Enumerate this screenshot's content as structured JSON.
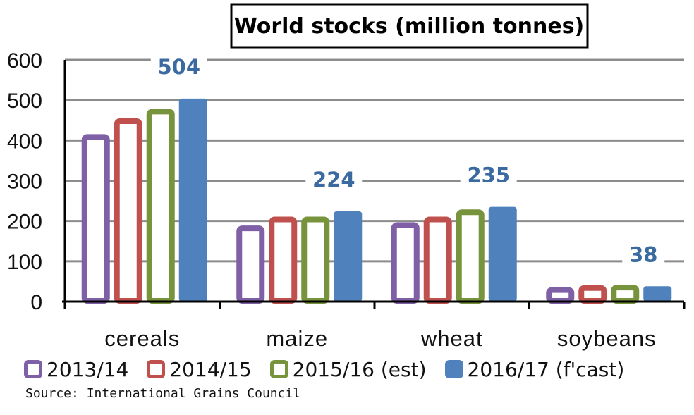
{
  "chart_data": {
    "type": "bar",
    "title": "World stocks (million tonnes)",
    "xlabel": "",
    "ylabel": "",
    "ylim": [
      0,
      600
    ],
    "yticks": [
      0,
      100,
      200,
      300,
      400,
      500,
      600
    ],
    "grid": true,
    "legend": "bottom",
    "categories": [
      "cereals",
      "maize",
      "wheat",
      "soybeans"
    ],
    "series": [
      {
        "name": "2013/14",
        "color": "#7f5fa6",
        "style": "hollow",
        "values": [
          414,
          187,
          195,
          34
        ]
      },
      {
        "name": "2014/15",
        "color": "#c0504d",
        "style": "hollow",
        "values": [
          453,
          209,
          209,
          39
        ]
      },
      {
        "name": "2015/16 (est)",
        "color": "#77933c",
        "style": "hollow",
        "values": [
          477,
          209,
          227,
          40
        ]
      },
      {
        "name": "2016/17 (f'cast)",
        "color": "#4f81bd",
        "style": "solid",
        "values": [
          504,
          224,
          235,
          38
        ]
      }
    ],
    "data_labels": [
      "504",
      "224",
      "235",
      "38"
    ]
  },
  "source": "Source: International Grains Council"
}
